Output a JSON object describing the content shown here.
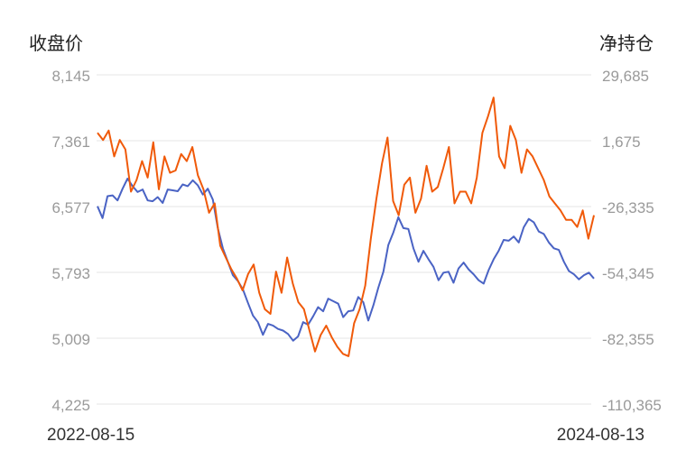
{
  "chart_data": {
    "type": "line",
    "left_axis_title": "收盘价",
    "right_axis_title": "净持仓",
    "x_start_label": "2022-08-15",
    "x_end_label": "2024-08-13",
    "left_ticks": [
      "8,145",
      "7,361",
      "6,577",
      "5,793",
      "5,009",
      "4,225"
    ],
    "right_ticks": [
      "29,685",
      "1,675",
      "-26,335",
      "-54,345",
      "-82,355",
      "-110,365"
    ],
    "left_range": [
      4225,
      8145
    ],
    "right_range": [
      -110365,
      29685
    ],
    "grid": true,
    "series": [
      {
        "axis": "left",
        "color": "#4a63c4",
        "values": [
          6580,
          6440,
          6700,
          6710,
          6650,
          6790,
          6910,
          6820,
          6750,
          6780,
          6650,
          6640,
          6690,
          6620,
          6780,
          6770,
          6760,
          6840,
          6820,
          6890,
          6830,
          6720,
          6790,
          6660,
          6320,
          6080,
          5920,
          5760,
          5690,
          5590,
          5430,
          5280,
          5200,
          5050,
          5180,
          5160,
          5120,
          5100,
          5060,
          4980,
          5030,
          5200,
          5170,
          5270,
          5380,
          5330,
          5480,
          5450,
          5420,
          5260,
          5330,
          5340,
          5500,
          5440,
          5220,
          5400,
          5610,
          5800,
          6120,
          6270,
          6450,
          6320,
          6310,
          6080,
          5920,
          6050,
          5950,
          5860,
          5700,
          5790,
          5800,
          5670,
          5840,
          5910,
          5830,
          5770,
          5700,
          5660,
          5820,
          5950,
          6050,
          6180,
          6170,
          6220,
          6150,
          6330,
          6430,
          6390,
          6280,
          6250,
          6150,
          6080,
          6060,
          5920,
          5810,
          5770,
          5710,
          5760,
          5790,
          5720
        ]
      },
      {
        "axis": "right",
        "color": "#f05a0a",
        "values": [
          5000,
          2000,
          6000,
          -5000,
          2000,
          -2000,
          -20000,
          -15000,
          -7000,
          -14000,
          1000,
          -19000,
          -5000,
          -12000,
          -11000,
          -4000,
          -7000,
          -1000,
          -13000,
          -19000,
          -29000,
          -25000,
          -43000,
          -48000,
          -53000,
          -57000,
          -62000,
          -55000,
          -51000,
          -63000,
          -70000,
          -72000,
          -54000,
          -63000,
          -48000,
          -59000,
          -67000,
          -70000,
          -79000,
          -88000,
          -81000,
          -77000,
          -82000,
          -86000,
          -89000,
          -90000,
          -76000,
          -70000,
          -60000,
          -40000,
          -23000,
          -8000,
          3000,
          -24000,
          -30000,
          -17000,
          -14000,
          -29000,
          -23000,
          -9000,
          -20000,
          -18000,
          -10000,
          -1000,
          -25000,
          -20000,
          -20000,
          -25000,
          -14000,
          5000,
          12000,
          20000,
          -5000,
          -10000,
          8000,
          2000,
          -12000,
          -2000,
          -5000,
          -10000,
          -15000,
          -22000,
          -25000,
          -28000,
          -32000,
          -32000,
          -35000,
          -28000,
          -40000,
          -30000
        ]
      }
    ]
  }
}
